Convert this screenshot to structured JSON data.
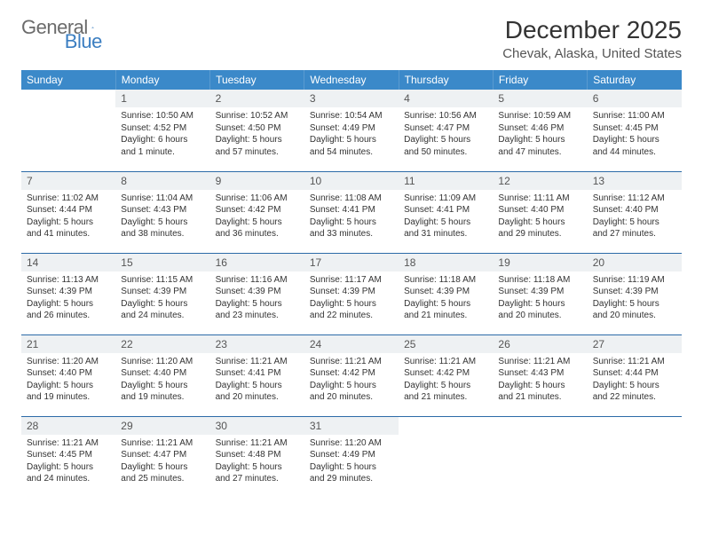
{
  "logo": {
    "text1": "General",
    "text2": "Blue"
  },
  "header": {
    "month_title": "December 2025",
    "location": "Chevak, Alaska, United States"
  },
  "colors": {
    "header_bg": "#3b89c9",
    "header_text": "#ffffff",
    "daynum_bg": "#eef1f3",
    "row_border": "#2c6ba8",
    "logo_blue": "#3b7ec1"
  },
  "weekdays": [
    "Sunday",
    "Monday",
    "Tuesday",
    "Wednesday",
    "Thursday",
    "Friday",
    "Saturday"
  ],
  "weeks": [
    [
      null,
      {
        "n": "1",
        "sunrise": "Sunrise: 10:50 AM",
        "sunset": "Sunset: 4:52 PM",
        "daylight": "Daylight: 6 hours and 1 minute."
      },
      {
        "n": "2",
        "sunrise": "Sunrise: 10:52 AM",
        "sunset": "Sunset: 4:50 PM",
        "daylight": "Daylight: 5 hours and 57 minutes."
      },
      {
        "n": "3",
        "sunrise": "Sunrise: 10:54 AM",
        "sunset": "Sunset: 4:49 PM",
        "daylight": "Daylight: 5 hours and 54 minutes."
      },
      {
        "n": "4",
        "sunrise": "Sunrise: 10:56 AM",
        "sunset": "Sunset: 4:47 PM",
        "daylight": "Daylight: 5 hours and 50 minutes."
      },
      {
        "n": "5",
        "sunrise": "Sunrise: 10:59 AM",
        "sunset": "Sunset: 4:46 PM",
        "daylight": "Daylight: 5 hours and 47 minutes."
      },
      {
        "n": "6",
        "sunrise": "Sunrise: 11:00 AM",
        "sunset": "Sunset: 4:45 PM",
        "daylight": "Daylight: 5 hours and 44 minutes."
      }
    ],
    [
      {
        "n": "7",
        "sunrise": "Sunrise: 11:02 AM",
        "sunset": "Sunset: 4:44 PM",
        "daylight": "Daylight: 5 hours and 41 minutes."
      },
      {
        "n": "8",
        "sunrise": "Sunrise: 11:04 AM",
        "sunset": "Sunset: 4:43 PM",
        "daylight": "Daylight: 5 hours and 38 minutes."
      },
      {
        "n": "9",
        "sunrise": "Sunrise: 11:06 AM",
        "sunset": "Sunset: 4:42 PM",
        "daylight": "Daylight: 5 hours and 36 minutes."
      },
      {
        "n": "10",
        "sunrise": "Sunrise: 11:08 AM",
        "sunset": "Sunset: 4:41 PM",
        "daylight": "Daylight: 5 hours and 33 minutes."
      },
      {
        "n": "11",
        "sunrise": "Sunrise: 11:09 AM",
        "sunset": "Sunset: 4:41 PM",
        "daylight": "Daylight: 5 hours and 31 minutes."
      },
      {
        "n": "12",
        "sunrise": "Sunrise: 11:11 AM",
        "sunset": "Sunset: 4:40 PM",
        "daylight": "Daylight: 5 hours and 29 minutes."
      },
      {
        "n": "13",
        "sunrise": "Sunrise: 11:12 AM",
        "sunset": "Sunset: 4:40 PM",
        "daylight": "Daylight: 5 hours and 27 minutes."
      }
    ],
    [
      {
        "n": "14",
        "sunrise": "Sunrise: 11:13 AM",
        "sunset": "Sunset: 4:39 PM",
        "daylight": "Daylight: 5 hours and 26 minutes."
      },
      {
        "n": "15",
        "sunrise": "Sunrise: 11:15 AM",
        "sunset": "Sunset: 4:39 PM",
        "daylight": "Daylight: 5 hours and 24 minutes."
      },
      {
        "n": "16",
        "sunrise": "Sunrise: 11:16 AM",
        "sunset": "Sunset: 4:39 PM",
        "daylight": "Daylight: 5 hours and 23 minutes."
      },
      {
        "n": "17",
        "sunrise": "Sunrise: 11:17 AM",
        "sunset": "Sunset: 4:39 PM",
        "daylight": "Daylight: 5 hours and 22 minutes."
      },
      {
        "n": "18",
        "sunrise": "Sunrise: 11:18 AM",
        "sunset": "Sunset: 4:39 PM",
        "daylight": "Daylight: 5 hours and 21 minutes."
      },
      {
        "n": "19",
        "sunrise": "Sunrise: 11:18 AM",
        "sunset": "Sunset: 4:39 PM",
        "daylight": "Daylight: 5 hours and 20 minutes."
      },
      {
        "n": "20",
        "sunrise": "Sunrise: 11:19 AM",
        "sunset": "Sunset: 4:39 PM",
        "daylight": "Daylight: 5 hours and 20 minutes."
      }
    ],
    [
      {
        "n": "21",
        "sunrise": "Sunrise: 11:20 AM",
        "sunset": "Sunset: 4:40 PM",
        "daylight": "Daylight: 5 hours and 19 minutes."
      },
      {
        "n": "22",
        "sunrise": "Sunrise: 11:20 AM",
        "sunset": "Sunset: 4:40 PM",
        "daylight": "Daylight: 5 hours and 19 minutes."
      },
      {
        "n": "23",
        "sunrise": "Sunrise: 11:21 AM",
        "sunset": "Sunset: 4:41 PM",
        "daylight": "Daylight: 5 hours and 20 minutes."
      },
      {
        "n": "24",
        "sunrise": "Sunrise: 11:21 AM",
        "sunset": "Sunset: 4:42 PM",
        "daylight": "Daylight: 5 hours and 20 minutes."
      },
      {
        "n": "25",
        "sunrise": "Sunrise: 11:21 AM",
        "sunset": "Sunset: 4:42 PM",
        "daylight": "Daylight: 5 hours and 21 minutes."
      },
      {
        "n": "26",
        "sunrise": "Sunrise: 11:21 AM",
        "sunset": "Sunset: 4:43 PM",
        "daylight": "Daylight: 5 hours and 21 minutes."
      },
      {
        "n": "27",
        "sunrise": "Sunrise: 11:21 AM",
        "sunset": "Sunset: 4:44 PM",
        "daylight": "Daylight: 5 hours and 22 minutes."
      }
    ],
    [
      {
        "n": "28",
        "sunrise": "Sunrise: 11:21 AM",
        "sunset": "Sunset: 4:45 PM",
        "daylight": "Daylight: 5 hours and 24 minutes."
      },
      {
        "n": "29",
        "sunrise": "Sunrise: 11:21 AM",
        "sunset": "Sunset: 4:47 PM",
        "daylight": "Daylight: 5 hours and 25 minutes."
      },
      {
        "n": "30",
        "sunrise": "Sunrise: 11:21 AM",
        "sunset": "Sunset: 4:48 PM",
        "daylight": "Daylight: 5 hours and 27 minutes."
      },
      {
        "n": "31",
        "sunrise": "Sunrise: 11:20 AM",
        "sunset": "Sunset: 4:49 PM",
        "daylight": "Daylight: 5 hours and 29 minutes."
      },
      null,
      null,
      null
    ]
  ]
}
